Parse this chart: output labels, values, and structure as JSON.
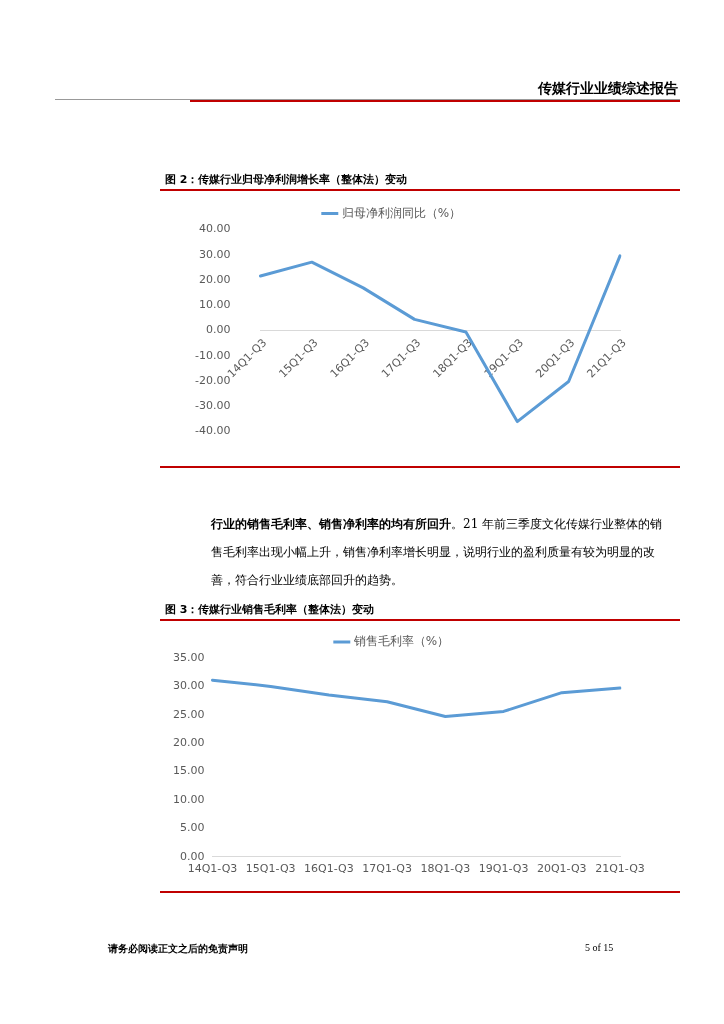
{
  "chart_data": [
    {
      "type": "line",
      "title": "图 2：传媒行业归母净利润增长率（整体法）变动",
      "annotations": [
        "传媒行业业绩综述报告"
      ],
      "categories": [
        "14Q1-Q3",
        "15Q1-Q3",
        "16Q1-Q3",
        "17Q1-Q3",
        "18Q1-Q3",
        "19Q1-Q3",
        "20Q1-Q3",
        "21Q1-Q3"
      ],
      "series": [
        {
          "name": "归母净利润同比（%）",
          "color": "#5b9bd5",
          "values": [
            21.6,
            27.1,
            16.9,
            4.4,
            -0.6,
            -36.1,
            -20.2,
            29.6
          ]
        }
      ],
      "ylim": [
        -40,
        40
      ],
      "yticks": [
        {
          "value": -40,
          "label": "-40.00"
        },
        {
          "value": -30,
          "label": "-30.00"
        },
        {
          "value": -20,
          "label": "-20.00"
        },
        {
          "value": -10,
          "label": "-10.00"
        },
        {
          "value": 0,
          "label": "0.00"
        },
        {
          "value": 10,
          "label": "10.00"
        },
        {
          "value": 20,
          "label": "20.00"
        },
        {
          "value": 30,
          "label": "30.00"
        },
        {
          "value": 40,
          "label": "40.00"
        }
      ],
      "grid": false,
      "legend": "top",
      "marker": "none",
      "line_style": "solid"
    },
    {
      "type": "line",
      "title": "图 3：传媒行业销售毛利率（整体法）变动",
      "annotations": [
        "行业的销售毛利率、销售净利率的均有所回升",
        "。21 年前三季度文化传媒行业整体的销售毛利率出现小幅上升，销售净利率增长明显，说明行业的盈利质量有较为明显的改善，符合行业业绩底部回升的趋势。",
        "请务必阅读正文之后的免责声明",
        "5 of 15"
      ],
      "categories": [
        "14Q1-Q3",
        "15Q1-Q3",
        "16Q1-Q3",
        "17Q1-Q3",
        "18Q1-Q3",
        "19Q1-Q3",
        "20Q1-Q3",
        "21Q1-Q3"
      ],
      "series": [
        {
          "name": "销售毛利率（%）",
          "color": "#5b9bd5",
          "values": [
            31.1,
            30.0,
            28.5,
            27.3,
            24.7,
            25.6,
            28.9,
            29.7
          ]
        }
      ],
      "ylim": [
        0,
        35
      ],
      "yticks": [
        {
          "value": 0,
          "label": "0.00"
        },
        {
          "value": 5,
          "label": "5.00"
        },
        {
          "value": 10,
          "label": "10.00"
        },
        {
          "value": 15,
          "label": "15.00"
        },
        {
          "value": 20,
          "label": "20.00"
        },
        {
          "value": 25,
          "label": "25.00"
        },
        {
          "value": 30,
          "label": "30.00"
        },
        {
          "value": 35,
          "label": "35.00"
        }
      ],
      "grid": false,
      "legend": "top",
      "marker": "none",
      "line_style": "solid"
    }
  ]
}
